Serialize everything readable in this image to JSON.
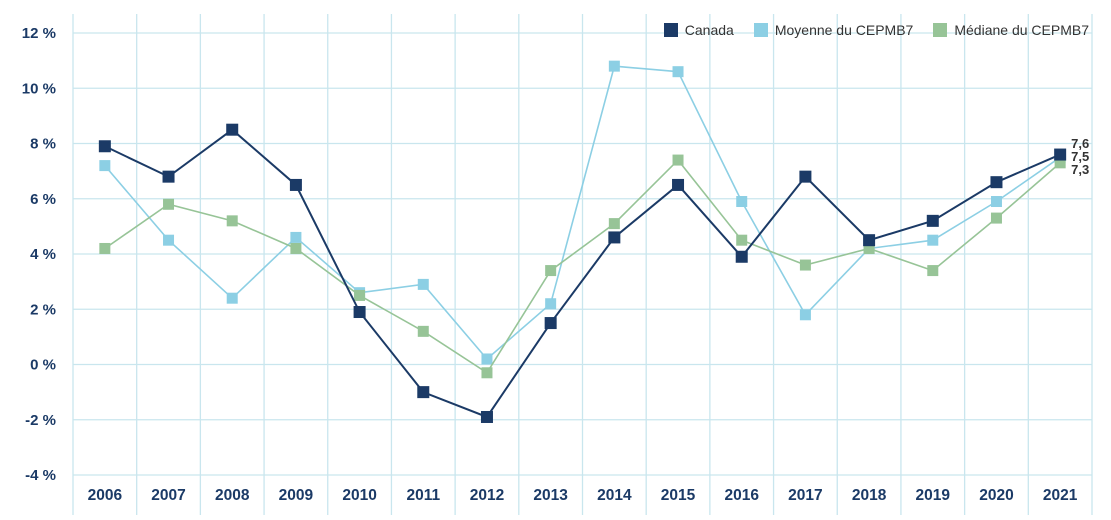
{
  "chart_data": {
    "type": "line",
    "title": "",
    "categories": [
      "2006",
      "2007",
      "2008",
      "2009",
      "2010",
      "2011",
      "2012",
      "2013",
      "2014",
      "2015",
      "2016",
      "2017",
      "2018",
      "2019",
      "2020",
      "2021"
    ],
    "series": [
      {
        "name": "Canada",
        "color": "#1b3a66",
        "marker": "square",
        "end_label": "7,6",
        "values": [
          7.9,
          6.8,
          8.5,
          6.5,
          1.9,
          -1.0,
          -1.9,
          1.5,
          4.6,
          6.5,
          3.9,
          6.8,
          4.5,
          5.2,
          6.6,
          7.6
        ]
      },
      {
        "name": "Moyenne du CEPMB7",
        "color": "#8ccfe4",
        "marker": "square",
        "end_label": "7,5",
        "values": [
          7.2,
          4.5,
          2.4,
          4.6,
          2.6,
          2.9,
          0.2,
          2.2,
          10.8,
          10.6,
          5.9,
          1.8,
          4.2,
          4.5,
          5.9,
          7.5
        ]
      },
      {
        "name": "Médiane du CEPMB7",
        "color": "#97c497",
        "marker": "square",
        "end_label": "7,3",
        "values": [
          4.2,
          5.8,
          5.2,
          4.2,
          2.5,
          1.2,
          -0.3,
          3.4,
          5.1,
          7.4,
          4.5,
          3.6,
          4.2,
          3.4,
          5.3,
          7.3
        ]
      }
    ],
    "y_axis": {
      "min": -4,
      "max": 12,
      "step": 2,
      "tick_labels": [
        "12 %",
        "10 %",
        "8 %",
        "6 %",
        "4 %",
        "2 %",
        "0 %",
        "-2 %",
        "-4 %"
      ]
    },
    "x_axis": {
      "label": ""
    },
    "grid": true,
    "legend_position": "top-right",
    "colors": {
      "grid": "#c9e6ee",
      "axis_text": "#1b3a66",
      "end_label_text": "#333333"
    }
  }
}
